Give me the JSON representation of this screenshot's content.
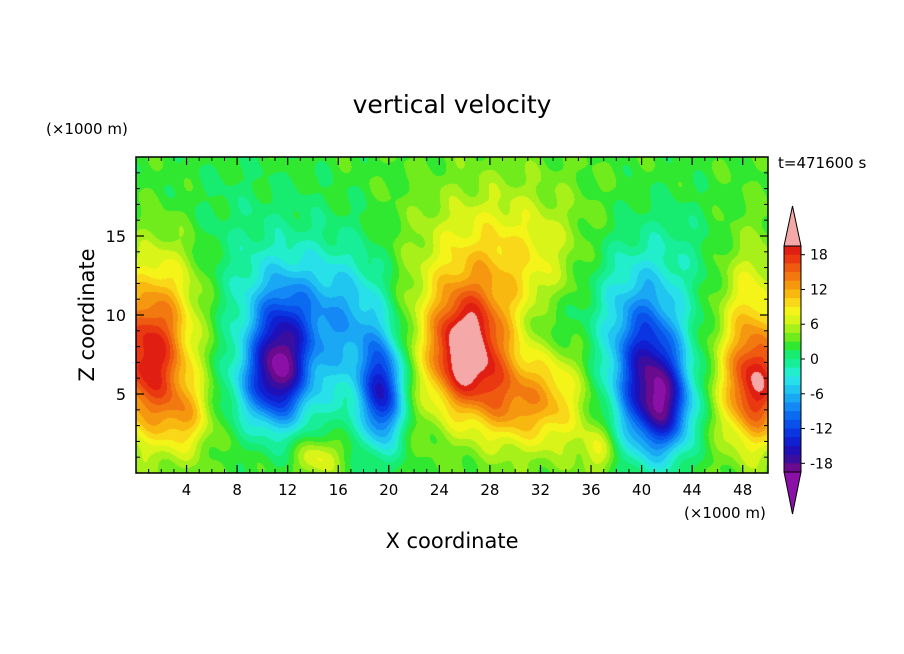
{
  "chart_data": {
    "type": "heatmap",
    "title": "vertical velocity",
    "xlabel": "X coordinate",
    "ylabel": "Z coordinate",
    "x_unit": "(×1000 m)",
    "y_unit": "(×1000 m)",
    "time_label": "t=471600 s",
    "xlim": [
      0,
      50
    ],
    "ylim": [
      0,
      20
    ],
    "x_ticks": [
      "4",
      "8",
      "12",
      "16",
      "20",
      "24",
      "28",
      "32",
      "36",
      "40",
      "44",
      "48"
    ],
    "y_ticks": [
      "5",
      "10",
      "15"
    ],
    "colorbar": {
      "ticks": [
        "18",
        "12",
        "6",
        "0",
        "-6",
        "-12",
        "-18"
      ],
      "levels": [
        -21,
        -19.5,
        -18,
        -16.5,
        -15,
        -13.5,
        -12,
        -10.5,
        -9,
        -7.5,
        -6,
        -4.5,
        -3,
        -1.5,
        0,
        1.5,
        3,
        4.5,
        6,
        7.5,
        9,
        10.5,
        12,
        13.5,
        15,
        16.5,
        18,
        19.5
      ],
      "colors": [
        "#6a0a8c",
        "#3a0fa0",
        "#2010b8",
        "#1020d0",
        "#0a35e0",
        "#0a50ea",
        "#0a6af0",
        "#1488f5",
        "#1aa8f5",
        "#20c6f0",
        "#28e0ea",
        "#22eecb",
        "#18ee98",
        "#18ec70",
        "#30e830",
        "#70ec1c",
        "#a8f01a",
        "#d8f418",
        "#f4f418",
        "#f8d818",
        "#f8b810",
        "#f59810",
        "#f27810",
        "#ee5a10",
        "#ea3810",
        "#e01e12",
        "#f4a8a8"
      ],
      "over_color": "#f4a8a8",
      "under_color": "#8a10a8"
    },
    "features": [
      {
        "x": 1.0,
        "z": 7.0,
        "w": 16,
        "sx": 2.2,
        "sz": 3.2
      },
      {
        "x": 2.5,
        "z": 12.0,
        "w": 5,
        "sx": 2.5,
        "sz": 3.0
      },
      {
        "x": 4.0,
        "z": 3.5,
        "w": 6,
        "sx": 1.4,
        "sz": 1.6
      },
      {
        "x": 11.5,
        "z": 7.0,
        "w": -15,
        "sx": 1.6,
        "sz": 2.6
      },
      {
        "x": 10.0,
        "z": 5.5,
        "w": -8,
        "sx": 2.0,
        "sz": 2.0
      },
      {
        "x": 12.0,
        "z": 10.5,
        "w": -6,
        "sx": 3.0,
        "sz": 2.5
      },
      {
        "x": 16.0,
        "z": 8.0,
        "w": -5,
        "sx": 2.5,
        "sz": 4.0
      },
      {
        "x": 19.5,
        "z": 5.0,
        "w": -16,
        "sx": 1.1,
        "sz": 2.3
      },
      {
        "x": 18.0,
        "z": 9.5,
        "w": -4,
        "sx": 2.0,
        "sz": 3.0
      },
      {
        "x": 14.5,
        "z": 1.0,
        "w": 6,
        "sx": 1.3,
        "sz": 0.9
      },
      {
        "x": 8.0,
        "z": 14.0,
        "w": -2.5,
        "sx": 6.0,
        "sz": 4.0
      },
      {
        "x": 26.0,
        "z": 7.5,
        "w": 17,
        "sx": 2.0,
        "sz": 2.6
      },
      {
        "x": 27.0,
        "z": 11.5,
        "w": 6,
        "sx": 4.0,
        "sz": 4.0
      },
      {
        "x": 29.5,
        "z": 4.5,
        "w": 8,
        "sx": 1.8,
        "sz": 2.0
      },
      {
        "x": 33.0,
        "z": 4.5,
        "w": 7,
        "sx": 1.8,
        "sz": 2.2
      },
      {
        "x": 32.5,
        "z": 9.5,
        "w": -3,
        "sx": 1.4,
        "sz": 1.4
      },
      {
        "x": 31.0,
        "z": 14.0,
        "w": 3,
        "sx": 4.0,
        "sz": 3.0
      },
      {
        "x": 40.5,
        "z": 6.0,
        "w": -17,
        "sx": 2.0,
        "sz": 3.2
      },
      {
        "x": 42.0,
        "z": 4.0,
        "w": -10,
        "sx": 1.5,
        "sz": 2.0
      },
      {
        "x": 39.0,
        "z": 11.0,
        "w": -5,
        "sx": 3.0,
        "sz": 3.0
      },
      {
        "x": 43.0,
        "z": 14.0,
        "w": -2,
        "sx": 3.0,
        "sz": 3.0
      },
      {
        "x": 49.0,
        "z": 5.5,
        "w": 16,
        "sx": 1.8,
        "sz": 2.6
      },
      {
        "x": 48.5,
        "z": 11.0,
        "w": 5,
        "sx": 1.8,
        "sz": 3.0
      },
      {
        "x": 36.5,
        "z": 1.5,
        "w": 5,
        "sx": 1.0,
        "sz": 1.2
      }
    ]
  }
}
